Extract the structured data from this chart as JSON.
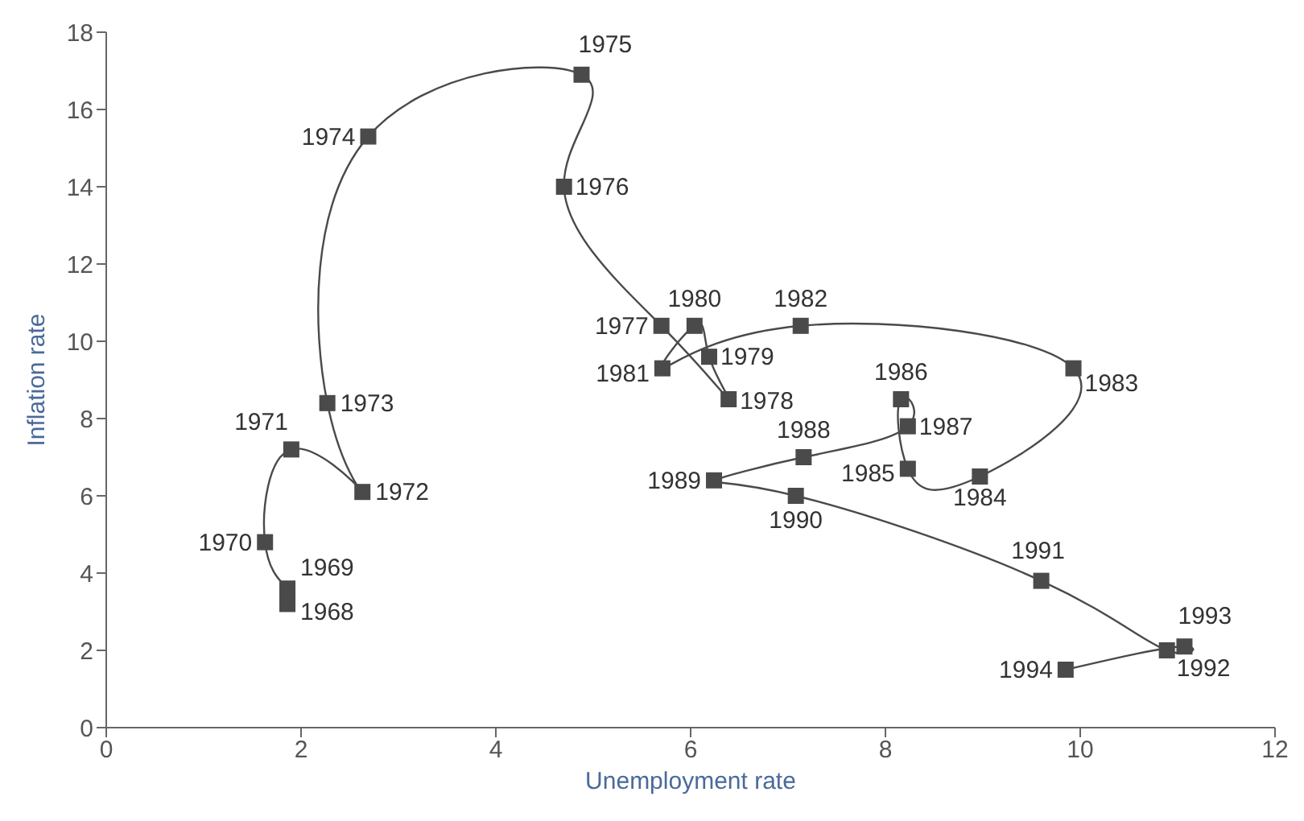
{
  "chart_data": {
    "type": "line",
    "xlabel": "Unemployment rate",
    "ylabel": "Inflation rate",
    "x": [
      1.86,
      1.86,
      1.63,
      1.9,
      2.63,
      2.27,
      2.69,
      4.88,
      4.7,
      5.7,
      6.39,
      6.19,
      6.04,
      5.71,
      7.13,
      9.93,
      8.97,
      8.23,
      8.16,
      8.23,
      7.16,
      6.24,
      7.08,
      9.6,
      10.89,
      11.07,
      9.85
    ],
    "series": [
      {
        "color": "#4a4a4a",
        "values": [
          3.2,
          3.6,
          4.8,
          7.2,
          6.1,
          8.4,
          15.3,
          16.9,
          14.0,
          10.4,
          8.5,
          9.6,
          10.4,
          9.3,
          10.4,
          9.3,
          6.5,
          6.7,
          8.5,
          7.8,
          7.0,
          6.4,
          6.0,
          3.8,
          2.0,
          2.1,
          1.5
        ]
      }
    ],
    "annotations": [
      {
        "text": "1968",
        "x": 1.86,
        "y": 3.2
      },
      {
        "text": "1969",
        "x": 1.86,
        "y": 3.6
      },
      {
        "text": "1970",
        "x": 1.63,
        "y": 4.8
      },
      {
        "text": "1971",
        "x": 1.9,
        "y": 7.2
      },
      {
        "text": "1972",
        "x": 2.63,
        "y": 6.1
      },
      {
        "text": "1973",
        "x": 2.27,
        "y": 8.4
      },
      {
        "text": "1974",
        "x": 2.69,
        "y": 15.3
      },
      {
        "text": "1975",
        "x": 4.88,
        "y": 16.9
      },
      {
        "text": "1976",
        "x": 4.7,
        "y": 14.0
      },
      {
        "text": "1977",
        "x": 5.7,
        "y": 10.4
      },
      {
        "text": "1978",
        "x": 6.39,
        "y": 8.5
      },
      {
        "text": "1979",
        "x": 6.19,
        "y": 9.6
      },
      {
        "text": "1980",
        "x": 6.04,
        "y": 10.4
      },
      {
        "text": "1981",
        "x": 5.71,
        "y": 9.3
      },
      {
        "text": "1982",
        "x": 7.13,
        "y": 10.4
      },
      {
        "text": "1983",
        "x": 9.93,
        "y": 9.3
      },
      {
        "text": "1984",
        "x": 8.97,
        "y": 6.5
      },
      {
        "text": "1985",
        "x": 8.23,
        "y": 6.7
      },
      {
        "text": "1986",
        "x": 8.16,
        "y": 8.5
      },
      {
        "text": "1987",
        "x": 8.23,
        "y": 7.8
      },
      {
        "text": "1988",
        "x": 7.16,
        "y": 7.0
      },
      {
        "text": "1989",
        "x": 6.24,
        "y": 6.4
      },
      {
        "text": "1990",
        "x": 7.08,
        "y": 6.0
      },
      {
        "text": "1991",
        "x": 9.6,
        "y": 3.8
      },
      {
        "text": "1992",
        "x": 10.89,
        "y": 2.0
      },
      {
        "text": "1993",
        "x": 11.07,
        "y": 2.1
      },
      {
        "text": "1994",
        "x": 9.85,
        "y": 1.5
      }
    ],
    "xlim": [
      0,
      12
    ],
    "xticks": [
      0,
      2,
      4,
      6,
      8,
      10,
      12
    ],
    "ylim": [
      0,
      18
    ],
    "yticks": [
      0,
      2,
      4,
      6,
      8,
      10,
      12,
      14,
      16,
      18
    ],
    "marker": "square",
    "line_style": "solid",
    "grid": false,
    "legend": false
  }
}
